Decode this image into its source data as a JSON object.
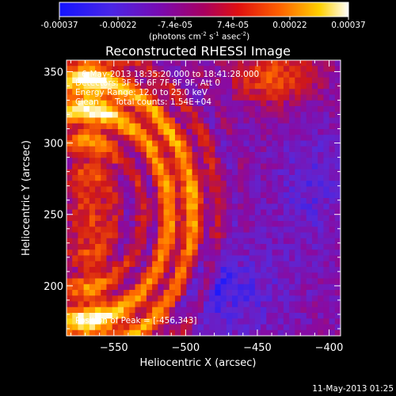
{
  "colorbar": {
    "tick_labels": [
      "-0.00037",
      "-0.00022",
      "-7.4e-05",
      "7.4e-05",
      "0.00022",
      "0.00037"
    ],
    "values": [
      -0.00037,
      -0.00022,
      -7.4e-05,
      7.4e-05,
      0.00022,
      0.00037
    ],
    "range": [
      -0.00037,
      0.00037
    ],
    "unit_text": "(photons cm",
    "unit_exp1": "-2",
    "unit_mid": " s",
    "unit_exp2": "-1",
    "unit_mid2": " asec",
    "unit_exp3": "-2",
    "unit_end": ")"
  },
  "annotation": {
    "line1": "6-May-2013 18:35:20.000 to 18:41:28.000",
    "line2": "Detectors: 3F 5F 6F 7F 8F 9F, Att 0",
    "line3": "Energy Range: 12.0 to 25.0 keV",
    "line4_a": "Clean",
    "line4_b": "Total counts: 1.54E+04",
    "peak": "Position of Peak = [-456,343]"
  },
  "footer": {
    "timestamp": "11-May-2013 01:25"
  },
  "chart_data": {
    "type": "heatmap",
    "title": "Reconstructed RHESSI Image",
    "xlabel": "Heliocentric X (arcsec)",
    "ylabel": "Heliocentric Y (arcsec)",
    "xlim": [
      -583,
      -392
    ],
    "ylim": [
      165,
      358
    ],
    "x_ticks": [
      -550,
      -500,
      -450,
      -400
    ],
    "y_ticks": [
      200,
      250,
      300,
      350
    ],
    "x_tick_labels": [
      "−550",
      "−500",
      "−450",
      "−400"
    ],
    "y_tick_labels": [
      "200",
      "250",
      "300",
      "350"
    ],
    "colormap": "blue-purple-red-yellow-white",
    "colorbar_range": [
      -0.00037,
      0.00037
    ],
    "peak_position": [
      -456,
      343
    ],
    "grid": false
  },
  "colors": {
    "background": "#000000",
    "cmap_stops": [
      "#1818ff",
      "#5a28d8",
      "#8a0aa0",
      "#d01818",
      "#ff6a00",
      "#ffd000",
      "#ffffff"
    ]
  }
}
